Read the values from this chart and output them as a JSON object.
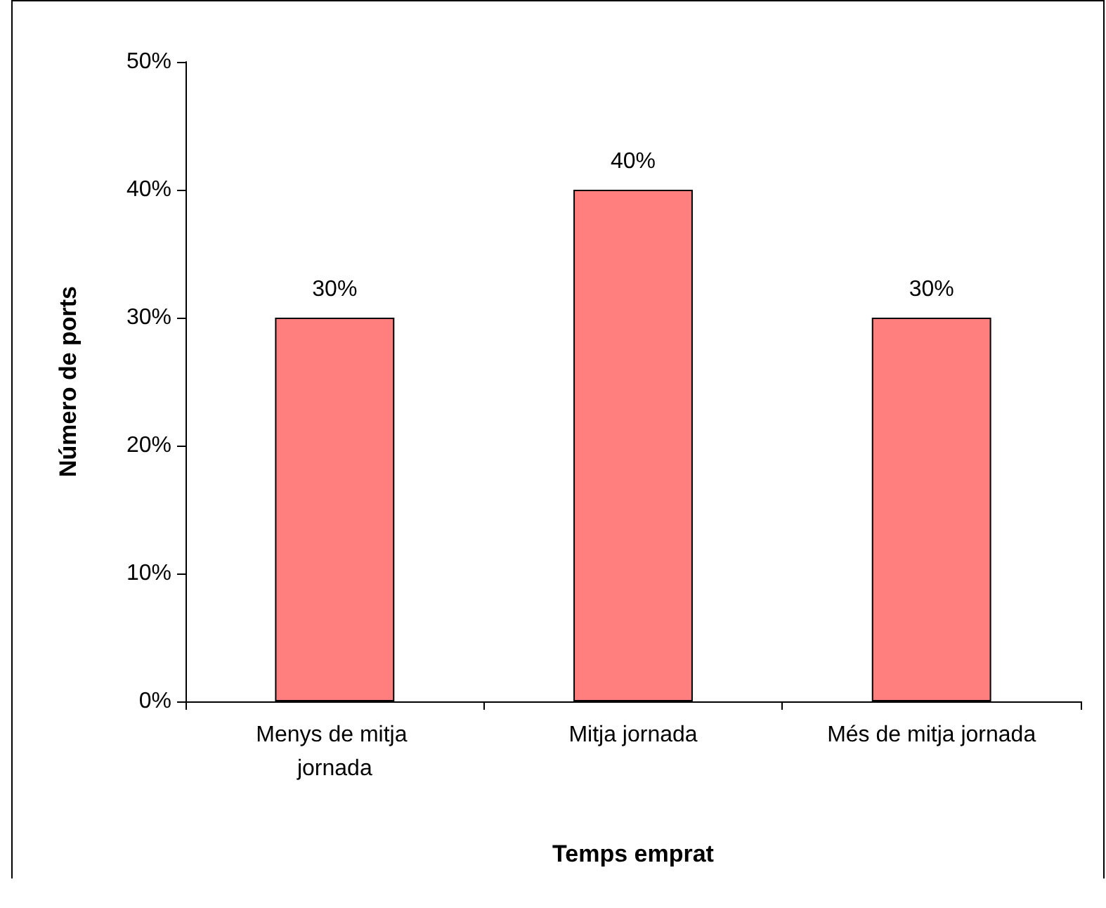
{
  "chart_data": {
    "type": "bar",
    "xlabel": "Temps emprat",
    "ylabel": "Número de ports",
    "categories": [
      "Menys de mitja jornada",
      "Mitja jornada",
      "Més de mitja jornada"
    ],
    "values": [
      30,
      40,
      30
    ],
    "color": "#ff7f7f",
    "value_labels": [
      "30%",
      "40%",
      "30%"
    ],
    "ylim": [
      0,
      50
    ],
    "yticks": [
      {
        "value": 0,
        "label": "0%"
      },
      {
        "value": 10,
        "label": "10%"
      },
      {
        "value": 20,
        "label": "20%"
      },
      {
        "value": 30,
        "label": "30%"
      },
      {
        "value": 40,
        "label": "40%"
      },
      {
        "value": 50,
        "label": "50%"
      }
    ],
    "grid": false
  }
}
